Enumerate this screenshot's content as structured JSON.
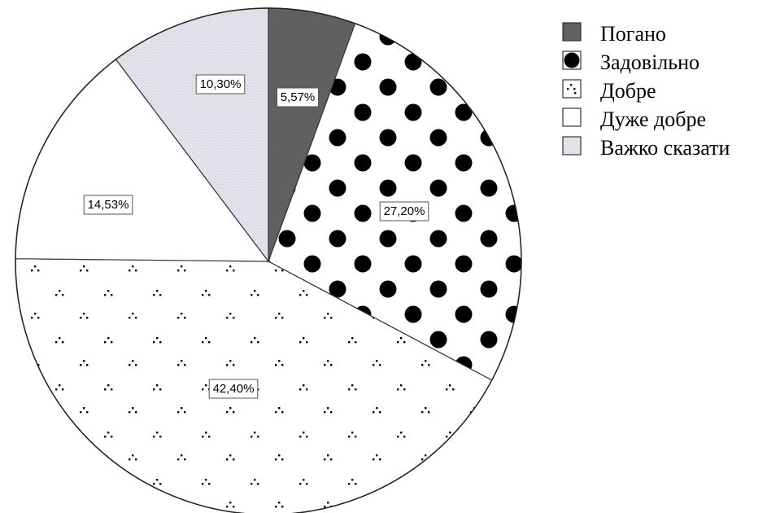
{
  "chart_data": {
    "type": "pie",
    "title": "",
    "slices": [
      {
        "label": "Погано",
        "value": 5.57,
        "value_label": "5,57%",
        "fill": "#606060",
        "pattern": "solid"
      },
      {
        "label": "Задовільно",
        "value": 27.2,
        "value_label": "27,20%",
        "fill": "#ffffff",
        "pattern": "big-dots"
      },
      {
        "label": "Добре",
        "value": 42.4,
        "value_label": "42,40%",
        "fill": "#ffffff",
        "pattern": "small-dot-clusters"
      },
      {
        "label": "Дуже добре",
        "value": 14.53,
        "value_label": "14,53%",
        "fill": "#ffffff",
        "pattern": "none"
      },
      {
        "label": "Важко сказати",
        "value": 10.3,
        "value_label": "10,30%",
        "fill": "#e4e4ea",
        "pattern": "light-grey"
      }
    ],
    "start_angle_deg": 0,
    "direction": "clockwise",
    "legend": {
      "placement": "top-right",
      "entries": [
        "Погано",
        "Задовільно",
        "Добре",
        "Дуже добре",
        "Важко сказати"
      ]
    }
  }
}
